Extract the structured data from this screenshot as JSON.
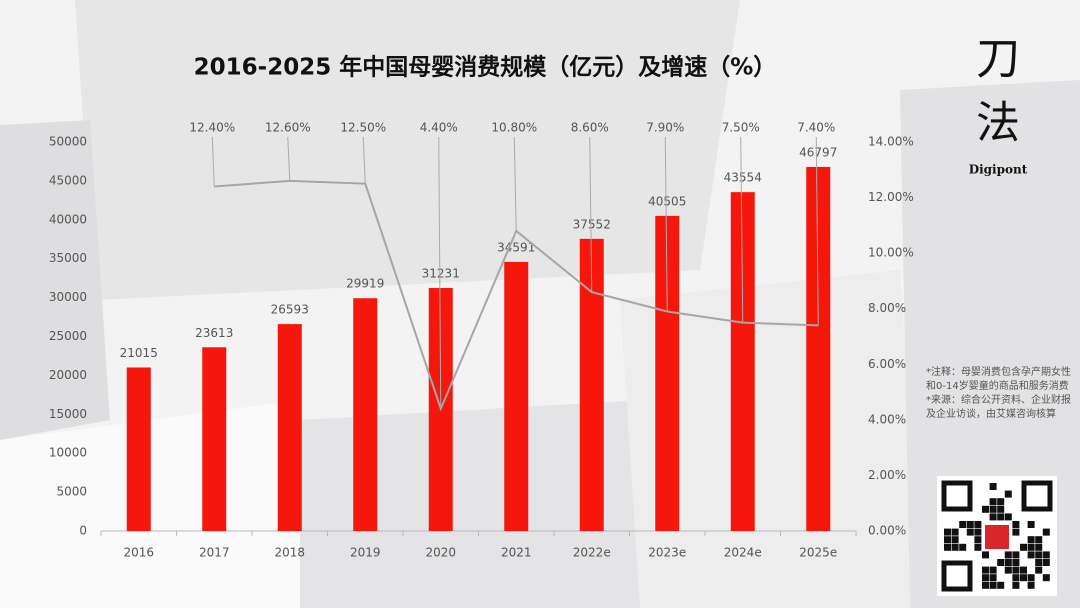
{
  "chart_data": {
    "type": "bar_line",
    "title": "2016-2025 年中国母婴消费规模（亿元）及增速（%）",
    "categories": [
      "2016",
      "2017",
      "2018",
      "2019",
      "2020",
      "2021",
      "2022e",
      "2023e",
      "2024e",
      "2025e"
    ],
    "series": [
      {
        "name": "母婴消费规模",
        "type": "bar",
        "color": "#f5160c",
        "values": [
          21015,
          23613,
          26593,
          29919,
          31231,
          34591,
          37552,
          40505,
          43554,
          46797
        ]
      },
      {
        "name": "增速",
        "type": "line",
        "axis": "y2",
        "color": "#a6a6a6",
        "values": [
          null,
          12.4,
          12.6,
          12.5,
          4.4,
          10.8,
          8.6,
          7.9,
          7.5,
          7.4
        ],
        "value_labels": [
          null,
          "12.40%",
          "12.60%",
          "12.50%",
          "4.40%",
          "10.80%",
          "8.60%",
          "7.90%",
          "7.50%",
          "7.40%"
        ]
      }
    ],
    "ylim": [
      0,
      50000
    ],
    "yticks": [
      0,
      5000,
      10000,
      15000,
      20000,
      25000,
      30000,
      35000,
      40000,
      45000,
      50000
    ],
    "y2lim": [
      0,
      14
    ],
    "y2ticks": [
      {
        "value": 0,
        "label": "0.00%"
      },
      {
        "value": 2,
        "label": "2.00%"
      },
      {
        "value": 4,
        "label": "4.00%"
      },
      {
        "value": 6,
        "label": "6.00%"
      },
      {
        "value": 8,
        "label": "8.00%"
      },
      {
        "value": 10,
        "label": "10.00%"
      },
      {
        "value": 12,
        "label": "12.00%"
      },
      {
        "value": 14,
        "label": "14.00%"
      }
    ],
    "grid": false
  },
  "brand": {
    "name": [
      "刀",
      "法"
    ],
    "sub": "Digipont"
  },
  "notes": [
    "*注释：母婴消费包含孕产期女性和0-14岁婴童的商品和服务消费",
    "*来源：综合公开资料、企业财报及企业访谈，由艾媒咨询核算"
  ]
}
